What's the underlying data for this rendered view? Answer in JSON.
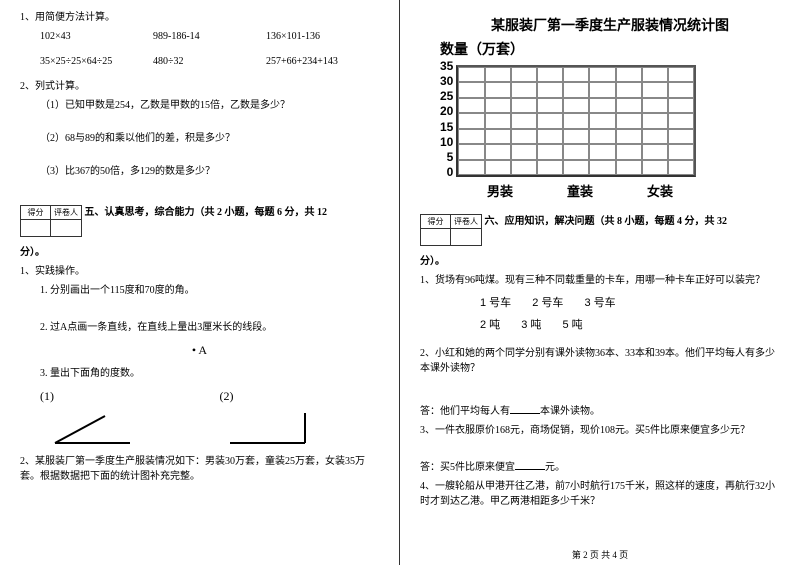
{
  "left": {
    "q1": {
      "title": "1、用简便方法计算。",
      "row1": [
        "102×43",
        "989-186-14",
        "136×101-136"
      ],
      "row2": [
        "35×25÷25×64÷25",
        "480÷32",
        "257+66+234+143"
      ]
    },
    "q2": {
      "title": "2、列式计算。",
      "items": [
        "（1）已知甲数是254，乙数是甲数的15倍，乙数是多少？",
        "（2）68与89的和乘以他们的差，积是多少？",
        "（3）比367的50倍，多129的数是多少？"
      ]
    },
    "score": {
      "lbl1": "得分",
      "lbl2": "评卷人"
    },
    "section5": "五、认真思考，综合能力（共 2 小题，每题 6 分，共 12",
    "section5_cont": "分）。",
    "p1": {
      "title": "1、实践操作。",
      "s1": "1. 分别画出一个115度和70度的角。",
      "s2": "2. 过A点画一条直线，在直线上量出3厘米长的线段。",
      "s3": "3. 量出下面角的度数。",
      "a1": "(1)",
      "a2": "(2)",
      "dotA": "• A"
    },
    "p2": "2、某服装厂第一季度生产服装情况如下：男装30万套，童装25万套，女装35万套。根据数据把下面的统计图补充完整。"
  },
  "right": {
    "chart": {
      "title": "某服装厂第一季度生产服装情况统计图",
      "y_label": "数量（万套）",
      "y_ticks": [
        "35",
        "30",
        "25",
        "20",
        "15",
        "10",
        "5",
        "0"
      ],
      "x_labels": [
        "男装",
        "童装",
        "女装"
      ],
      "grid_cols": 9,
      "grid_rows": 7,
      "grid_color": "#888888",
      "border_color": "#333333"
    },
    "score": {
      "lbl1": "得分",
      "lbl2": "评卷人"
    },
    "section6": "六、应用知识，解决问题（共 8 小题，每题 4 分，共 32",
    "section6_cont": "分）。",
    "q1": {
      "text": "1、货场有96吨煤。现有三种不同载重量的卡车，用哪一种卡车正好可以装完？",
      "trucks": [
        "1 号车",
        "2 号车",
        "3 号车"
      ],
      "tons": [
        "2 吨",
        "3 吨",
        "5 吨"
      ]
    },
    "q2": "2、小红和她的两个同学分别有课外读物36本、33本和39本。他们平均每人有多少本课外读物？",
    "q2ans_pre": "答：他们平均每人有",
    "q2ans_post": "本课外读物。",
    "q3": "3、一件衣服原价168元，商场促销，现价108元。买5件比原来便宜多少元？",
    "q3ans_pre": "答：买5件比原来便宜",
    "q3ans_post": "元。",
    "q4": "4、一艘轮船从甲港开往乙港，前7小时航行175千米，照这样的速度，再航行32小时才到达乙港。甲乙两港相距多少千米？"
  },
  "footer": "第 2 页 共 4 页"
}
